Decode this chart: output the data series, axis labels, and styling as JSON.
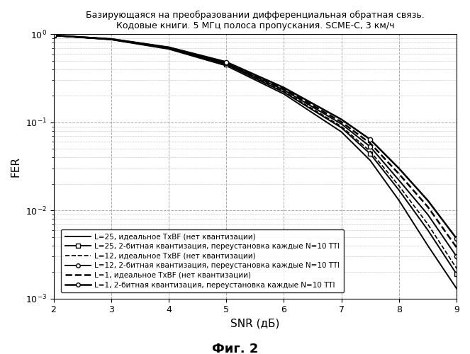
{
  "title_line1": "Базирующаяся на преобразовании дифференциальная обратная связь.",
  "title_line2": "Кодовые книги. 5 МГц полоса пропускания. SCME-C, 3 км/ч",
  "xlabel": "SNR (дБ)",
  "ylabel": "FER",
  "fig_label": "Фиг. 2",
  "xlim": [
    2,
    9
  ],
  "ylim_log": [
    -3,
    0
  ],
  "curves": {
    "L25_ideal": {
      "snr": [
        2,
        3,
        4,
        5,
        6,
        7,
        7.5,
        8,
        8.5,
        9
      ],
      "fer": [
        0.97,
        0.87,
        0.68,
        0.44,
        0.21,
        0.078,
        0.037,
        0.013,
        0.004,
        0.0013
      ],
      "style": "solid",
      "linewidth": 1.4,
      "marker": null,
      "label": "L=25, идеальное TxBF (нет квантизации)"
    },
    "L25_quant": {
      "snr": [
        2,
        3,
        4,
        5,
        6,
        7,
        7.5,
        8,
        8.5,
        9
      ],
      "fer": [
        0.97,
        0.875,
        0.69,
        0.455,
        0.22,
        0.087,
        0.044,
        0.017,
        0.006,
        0.0019
      ],
      "style": "solid",
      "linewidth": 1.4,
      "marker": "s",
      "label": "L=25, 2-битная квантизация, переустановка каждые N=10 TTI"
    },
    "L12_ideal": {
      "snr": [
        2,
        3,
        4,
        5,
        6,
        7,
        7.5,
        8,
        8.5,
        9
      ],
      "fer": [
        0.97,
        0.875,
        0.695,
        0.46,
        0.225,
        0.09,
        0.047,
        0.019,
        0.007,
        0.0022
      ],
      "style": "dashed",
      "linewidth": 1.2,
      "marker": null,
      "label": "L=12, идеальное TxBF (нет квантизации)"
    },
    "L12_quant": {
      "snr": [
        2,
        3,
        4,
        5,
        6,
        7,
        7.5,
        8,
        8.5,
        9
      ],
      "fer": [
        0.97,
        0.88,
        0.7,
        0.468,
        0.233,
        0.096,
        0.053,
        0.022,
        0.009,
        0.003
      ],
      "style": "solid",
      "linewidth": 1.4,
      "marker": "o",
      "label": "L=12, 2-битная квантизация, переустановка каждые N=10 TTI"
    },
    "L1_ideal": {
      "snr": [
        2,
        3,
        4,
        5,
        6,
        7,
        7.5,
        8,
        8.5,
        9
      ],
      "fer": [
        0.97,
        0.882,
        0.705,
        0.475,
        0.24,
        0.101,
        0.058,
        0.026,
        0.011,
        0.0038
      ],
      "style": "dashed",
      "linewidth": 1.8,
      "marker": null,
      "label": "L=1, идеальное TxBF (нет квантизации)"
    },
    "L1_quant": {
      "snr": [
        2,
        3,
        4,
        5,
        6,
        7,
        7.5,
        8,
        8.5,
        9
      ],
      "fer": [
        0.97,
        0.885,
        0.712,
        0.485,
        0.248,
        0.108,
        0.064,
        0.03,
        0.013,
        0.0048
      ],
      "style": "solid",
      "linewidth": 1.8,
      "marker": "o",
      "label": "L=1, 2-битная квантизация, переустановка каждые N=10 TTI"
    }
  },
  "background_color": "#ffffff",
  "grid_major_color": "#aaaaaa",
  "grid_minor_color": "#cccccc",
  "legend_fontsize": 7.5,
  "tick_fontsize": 9,
  "axis_label_fontsize": 11,
  "title_fontsize": 9.0
}
